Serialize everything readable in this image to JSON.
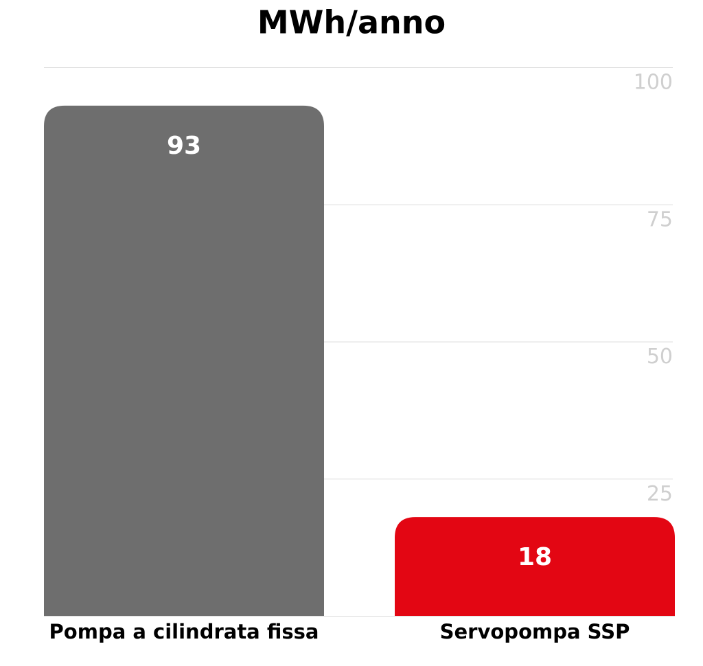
{
  "chart_data": {
    "type": "bar",
    "title": "MWh/anno",
    "categories": [
      "Pompa a cilindrata fissa",
      "Servopompa SSP"
    ],
    "values": [
      93,
      18
    ],
    "colors": [
      "#6e6e6e",
      "#e30613"
    ],
    "ylim": [
      0,
      100
    ],
    "yticks": [
      25,
      50,
      75,
      100
    ],
    "grid": true
  }
}
